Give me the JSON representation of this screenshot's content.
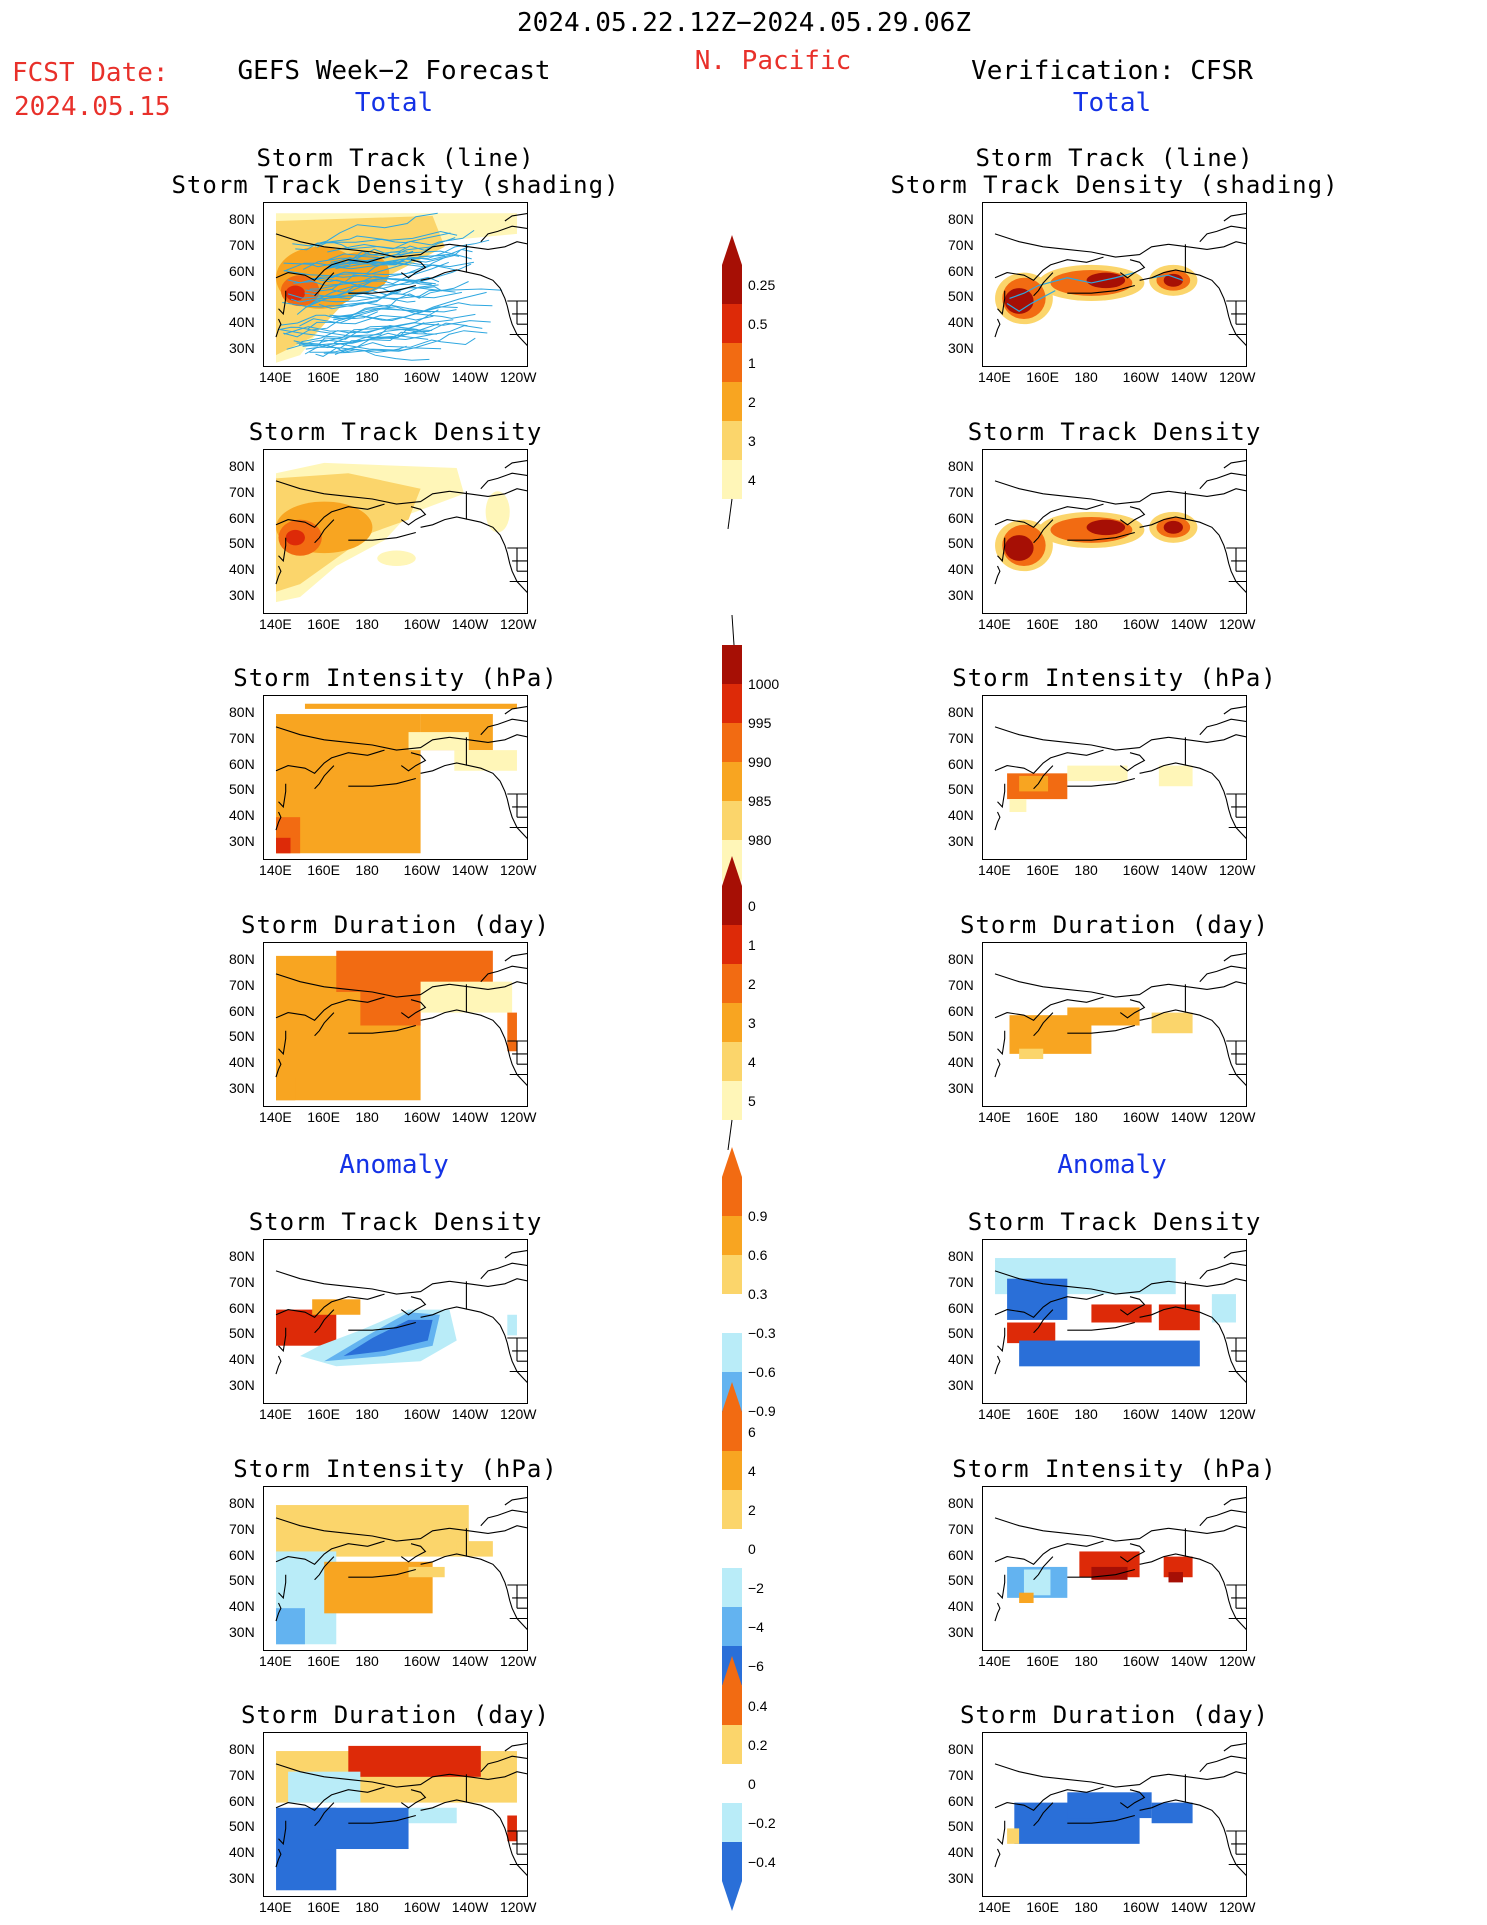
{
  "header": {
    "period": "2024.05.22.12Z−2024.05.29.06Z",
    "region": "N. Pacific",
    "fcst_label": "FCST Date:",
    "fcst_date": "2024.05.15",
    "left_title": "GEFS Week−2 Forecast",
    "right_title": "Verification: CFSR",
    "left_total": "Total",
    "right_total": "Total",
    "left_anomaly": "Anomaly",
    "right_anomaly": "Anomaly"
  },
  "panel_titles": {
    "track_line": "Storm Track (line)",
    "track_shading": "Storm Track Density (shading)",
    "density": "Storm Track Density",
    "intensity": "Storm Intensity (hPa)",
    "duration": "Storm Duration (day)"
  },
  "axes": {
    "lon_ticks": [
      "140E",
      "160E",
      "180",
      "160W",
      "140W",
      "120W"
    ],
    "lat_ticks": [
      "80N",
      "70N",
      "60N",
      "50N",
      "40N",
      "30N"
    ]
  },
  "colors": {
    "c1": "#fff6b8",
    "c2": "#fbd56b",
    "c3": "#f8a521",
    "c4": "#f26b12",
    "c5": "#dd2a08",
    "c6": "#a60f05",
    "n1": "#b9ecf8",
    "n2": "#63b3f0",
    "n3": "#2a6fd8",
    "track": "#2ea7e0",
    "coast": "#000000"
  },
  "chart_data": [
    {
      "type": "heatmap",
      "name": "gefs_total_track_density_with_tracks",
      "title": "Storm Track (line) / Storm Track Density (shading)",
      "xlabel": "",
      "ylabel": "",
      "xlim": [
        140,
        240
      ],
      "ylim": [
        25,
        85
      ],
      "colorbar": {
        "levels": [
          0.25,
          0.5,
          1,
          2,
          3,
          4
        ],
        "labels": [
          "0.25",
          "0.5",
          "1",
          "2",
          "3",
          "4"
        ]
      }
    },
    {
      "type": "heatmap",
      "name": "cfsr_total_track_density_with_tracks",
      "title": "Storm Track (line) / Storm Track Density (shading)",
      "xlim": [
        140,
        240
      ],
      "ylim": [
        25,
        85
      ]
    },
    {
      "type": "heatmap",
      "name": "gefs_total_density",
      "title": "Storm Track Density",
      "xlim": [
        140,
        240
      ],
      "ylim": [
        25,
        85
      ]
    },
    {
      "type": "heatmap",
      "name": "cfsr_total_density",
      "title": "Storm Track Density",
      "xlim": [
        140,
        240
      ],
      "ylim": [
        25,
        85
      ]
    },
    {
      "type": "heatmap",
      "name": "gefs_total_intensity",
      "title": "Storm Intensity (hPa)",
      "xlim": [
        140,
        240
      ],
      "ylim": [
        25,
        85
      ],
      "colorbar": {
        "levels": [
          1000,
          995,
          990,
          985,
          980
        ],
        "labels": [
          "1000",
          "995",
          "990",
          "985",
          "980"
        ]
      }
    },
    {
      "type": "heatmap",
      "name": "cfsr_total_intensity",
      "title": "Storm Intensity (hPa)",
      "xlim": [
        140,
        240
      ],
      "ylim": [
        25,
        85
      ]
    },
    {
      "type": "heatmap",
      "name": "gefs_total_duration",
      "title": "Storm Duration (day)",
      "xlim": [
        140,
        240
      ],
      "ylim": [
        25,
        85
      ],
      "colorbar": {
        "levels": [
          0,
          1,
          2,
          3,
          4,
          5
        ],
        "labels": [
          "0",
          "1",
          "2",
          "3",
          "4",
          "5"
        ]
      }
    },
    {
      "type": "heatmap",
      "name": "cfsr_total_duration",
      "title": "Storm Duration (day)",
      "xlim": [
        140,
        240
      ],
      "ylim": [
        25,
        85
      ]
    },
    {
      "type": "heatmap",
      "name": "gefs_anom_density",
      "title": "Storm Track Density",
      "xlim": [
        140,
        240
      ],
      "ylim": [
        25,
        85
      ],
      "colorbar": {
        "levels": [
          0.9,
          0.6,
          0.3,
          -0.3,
          -0.6,
          -0.9
        ],
        "labels": [
          "0.9",
          "0.6",
          "0.3",
          "−0.3",
          "−0.6",
          "−0.9"
        ]
      }
    },
    {
      "type": "heatmap",
      "name": "cfsr_anom_density",
      "title": "Storm Track Density",
      "xlim": [
        140,
        240
      ],
      "ylim": [
        25,
        85
      ]
    },
    {
      "type": "heatmap",
      "name": "gefs_anom_intensity",
      "title": "Storm Intensity (hPa)",
      "xlim": [
        140,
        240
      ],
      "ylim": [
        25,
        85
      ],
      "colorbar": {
        "levels": [
          6,
          4,
          2,
          0,
          -2,
          -4,
          -6
        ],
        "labels": [
          "6",
          "4",
          "2",
          "0",
          "−2",
          "−4",
          "−6"
        ]
      }
    },
    {
      "type": "heatmap",
      "name": "cfsr_anom_intensity",
      "title": "Storm Intensity (hPa)",
      "xlim": [
        140,
        240
      ],
      "ylim": [
        25,
        85
      ]
    },
    {
      "type": "heatmap",
      "name": "gefs_anom_duration",
      "title": "Storm Duration (day)",
      "xlim": [
        140,
        240
      ],
      "ylim": [
        25,
        85
      ],
      "colorbar": {
        "levels": [
          0.4,
          0.2,
          0,
          -0.2,
          -0.4
        ],
        "labels": [
          "0.4",
          "0.2",
          "0",
          "−0.2",
          "−0.4"
        ]
      }
    },
    {
      "type": "heatmap",
      "name": "cfsr_anom_duration",
      "title": "Storm Duration (day)",
      "xlim": [
        140,
        240
      ],
      "ylim": [
        25,
        85
      ]
    }
  ]
}
